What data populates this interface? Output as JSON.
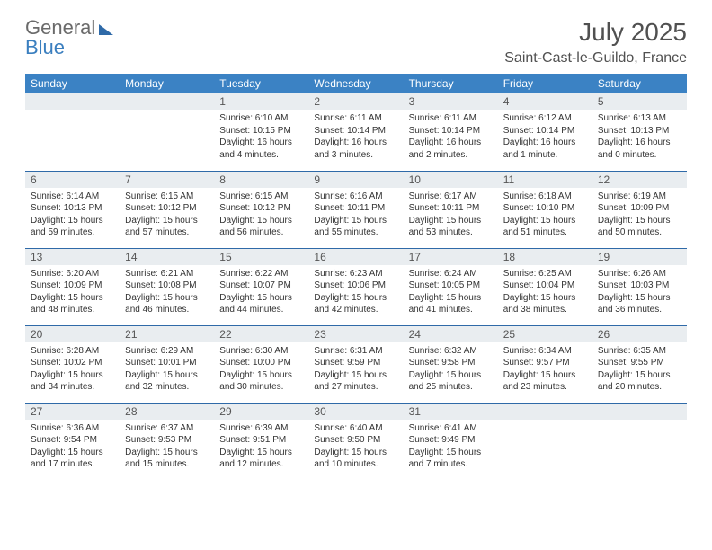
{
  "branding": {
    "line1": "General",
    "line2": "Blue"
  },
  "header": {
    "month_title": "July 2025",
    "location": "Saint-Cast-le-Guildo, France"
  },
  "colors": {
    "header_bg": "#3b82c4",
    "header_text": "#ffffff",
    "daynum_bg": "#e9edf0",
    "row_border": "#2f6aa8",
    "logo_gray": "#6a6a6a",
    "logo_blue": "#3b7fbf"
  },
  "weekdays": [
    "Sunday",
    "Monday",
    "Tuesday",
    "Wednesday",
    "Thursday",
    "Friday",
    "Saturday"
  ],
  "calendar": {
    "type": "table",
    "daynum_fontsize": 12,
    "body_fontsize": 10,
    "weeks": [
      [
        null,
        null,
        {
          "n": "1",
          "sunrise": "Sunrise: 6:10 AM",
          "sunset": "Sunset: 10:15 PM",
          "d1": "Daylight: 16 hours",
          "d2": "and 4 minutes."
        },
        {
          "n": "2",
          "sunrise": "Sunrise: 6:11 AM",
          "sunset": "Sunset: 10:14 PM",
          "d1": "Daylight: 16 hours",
          "d2": "and 3 minutes."
        },
        {
          "n": "3",
          "sunrise": "Sunrise: 6:11 AM",
          "sunset": "Sunset: 10:14 PM",
          "d1": "Daylight: 16 hours",
          "d2": "and 2 minutes."
        },
        {
          "n": "4",
          "sunrise": "Sunrise: 6:12 AM",
          "sunset": "Sunset: 10:14 PM",
          "d1": "Daylight: 16 hours",
          "d2": "and 1 minute."
        },
        {
          "n": "5",
          "sunrise": "Sunrise: 6:13 AM",
          "sunset": "Sunset: 10:13 PM",
          "d1": "Daylight: 16 hours",
          "d2": "and 0 minutes."
        }
      ],
      [
        {
          "n": "6",
          "sunrise": "Sunrise: 6:14 AM",
          "sunset": "Sunset: 10:13 PM",
          "d1": "Daylight: 15 hours",
          "d2": "and 59 minutes."
        },
        {
          "n": "7",
          "sunrise": "Sunrise: 6:15 AM",
          "sunset": "Sunset: 10:12 PM",
          "d1": "Daylight: 15 hours",
          "d2": "and 57 minutes."
        },
        {
          "n": "8",
          "sunrise": "Sunrise: 6:15 AM",
          "sunset": "Sunset: 10:12 PM",
          "d1": "Daylight: 15 hours",
          "d2": "and 56 minutes."
        },
        {
          "n": "9",
          "sunrise": "Sunrise: 6:16 AM",
          "sunset": "Sunset: 10:11 PM",
          "d1": "Daylight: 15 hours",
          "d2": "and 55 minutes."
        },
        {
          "n": "10",
          "sunrise": "Sunrise: 6:17 AM",
          "sunset": "Sunset: 10:11 PM",
          "d1": "Daylight: 15 hours",
          "d2": "and 53 minutes."
        },
        {
          "n": "11",
          "sunrise": "Sunrise: 6:18 AM",
          "sunset": "Sunset: 10:10 PM",
          "d1": "Daylight: 15 hours",
          "d2": "and 51 minutes."
        },
        {
          "n": "12",
          "sunrise": "Sunrise: 6:19 AM",
          "sunset": "Sunset: 10:09 PM",
          "d1": "Daylight: 15 hours",
          "d2": "and 50 minutes."
        }
      ],
      [
        {
          "n": "13",
          "sunrise": "Sunrise: 6:20 AM",
          "sunset": "Sunset: 10:09 PM",
          "d1": "Daylight: 15 hours",
          "d2": "and 48 minutes."
        },
        {
          "n": "14",
          "sunrise": "Sunrise: 6:21 AM",
          "sunset": "Sunset: 10:08 PM",
          "d1": "Daylight: 15 hours",
          "d2": "and 46 minutes."
        },
        {
          "n": "15",
          "sunrise": "Sunrise: 6:22 AM",
          "sunset": "Sunset: 10:07 PM",
          "d1": "Daylight: 15 hours",
          "d2": "and 44 minutes."
        },
        {
          "n": "16",
          "sunrise": "Sunrise: 6:23 AM",
          "sunset": "Sunset: 10:06 PM",
          "d1": "Daylight: 15 hours",
          "d2": "and 42 minutes."
        },
        {
          "n": "17",
          "sunrise": "Sunrise: 6:24 AM",
          "sunset": "Sunset: 10:05 PM",
          "d1": "Daylight: 15 hours",
          "d2": "and 41 minutes."
        },
        {
          "n": "18",
          "sunrise": "Sunrise: 6:25 AM",
          "sunset": "Sunset: 10:04 PM",
          "d1": "Daylight: 15 hours",
          "d2": "and 38 minutes."
        },
        {
          "n": "19",
          "sunrise": "Sunrise: 6:26 AM",
          "sunset": "Sunset: 10:03 PM",
          "d1": "Daylight: 15 hours",
          "d2": "and 36 minutes."
        }
      ],
      [
        {
          "n": "20",
          "sunrise": "Sunrise: 6:28 AM",
          "sunset": "Sunset: 10:02 PM",
          "d1": "Daylight: 15 hours",
          "d2": "and 34 minutes."
        },
        {
          "n": "21",
          "sunrise": "Sunrise: 6:29 AM",
          "sunset": "Sunset: 10:01 PM",
          "d1": "Daylight: 15 hours",
          "d2": "and 32 minutes."
        },
        {
          "n": "22",
          "sunrise": "Sunrise: 6:30 AM",
          "sunset": "Sunset: 10:00 PM",
          "d1": "Daylight: 15 hours",
          "d2": "and 30 minutes."
        },
        {
          "n": "23",
          "sunrise": "Sunrise: 6:31 AM",
          "sunset": "Sunset: 9:59 PM",
          "d1": "Daylight: 15 hours",
          "d2": "and 27 minutes."
        },
        {
          "n": "24",
          "sunrise": "Sunrise: 6:32 AM",
          "sunset": "Sunset: 9:58 PM",
          "d1": "Daylight: 15 hours",
          "d2": "and 25 minutes."
        },
        {
          "n": "25",
          "sunrise": "Sunrise: 6:34 AM",
          "sunset": "Sunset: 9:57 PM",
          "d1": "Daylight: 15 hours",
          "d2": "and 23 minutes."
        },
        {
          "n": "26",
          "sunrise": "Sunrise: 6:35 AM",
          "sunset": "Sunset: 9:55 PM",
          "d1": "Daylight: 15 hours",
          "d2": "and 20 minutes."
        }
      ],
      [
        {
          "n": "27",
          "sunrise": "Sunrise: 6:36 AM",
          "sunset": "Sunset: 9:54 PM",
          "d1": "Daylight: 15 hours",
          "d2": "and 17 minutes."
        },
        {
          "n": "28",
          "sunrise": "Sunrise: 6:37 AM",
          "sunset": "Sunset: 9:53 PM",
          "d1": "Daylight: 15 hours",
          "d2": "and 15 minutes."
        },
        {
          "n": "29",
          "sunrise": "Sunrise: 6:39 AM",
          "sunset": "Sunset: 9:51 PM",
          "d1": "Daylight: 15 hours",
          "d2": "and 12 minutes."
        },
        {
          "n": "30",
          "sunrise": "Sunrise: 6:40 AM",
          "sunset": "Sunset: 9:50 PM",
          "d1": "Daylight: 15 hours",
          "d2": "and 10 minutes."
        },
        {
          "n": "31",
          "sunrise": "Sunrise: 6:41 AM",
          "sunset": "Sunset: 9:49 PM",
          "d1": "Daylight: 15 hours",
          "d2": "and 7 minutes."
        },
        null,
        null
      ]
    ]
  }
}
